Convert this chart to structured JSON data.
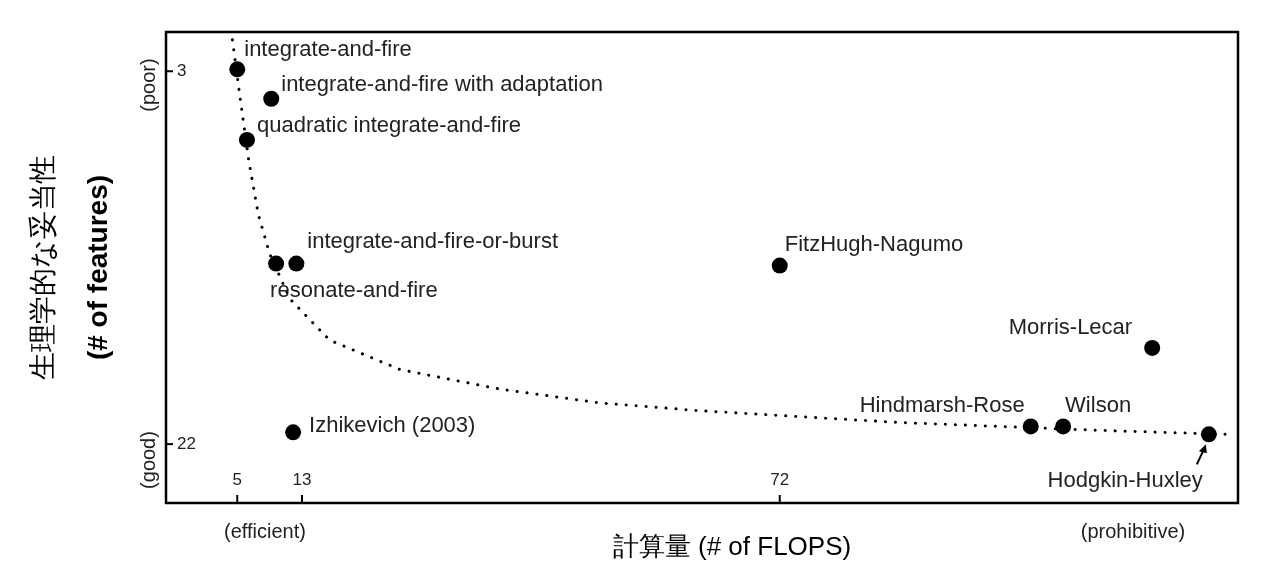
{
  "chart_data": {
    "type": "scatter",
    "xlabel": "計算量 (# of FLOPS)",
    "ylabel": "生理学的な妥当性\n(# of features)",
    "xlim": [
      -3.8,
      128.6
    ],
    "xticks": [
      5,
      13,
      72
    ],
    "ylim": [
      25.0,
      1.0
    ],
    "yticks": [
      3,
      22
    ],
    "grid": false,
    "series": [
      {
        "type": "line",
        "line_style": "dotted",
        "color": "#000000",
        "x": [
          4.4,
          5.4,
          6.4,
          7.6,
          9.0,
          11.5,
          16.4,
          25.1,
          37.5,
          49.8,
          62.2,
          74.5,
          86.9,
          99.2,
          111.5,
          127
        ],
        "values": [
          1.4,
          4.5,
          7.5,
          10.3,
          12.3,
          14.6,
          16.7,
          18.2,
          19.2,
          19.9,
          20.3,
          20.6,
          20.9,
          21.1,
          21.3,
          21.5
        ]
      },
      {
        "marker": "circle",
        "color": "#000000",
        "x": [
          5,
          9.2,
          6.2,
          12.3,
          9.8,
          72,
          118,
          103,
          107,
          11.9,
          125
        ],
        "values": [
          2.9,
          4.4,
          6.5,
          12.8,
          12.8,
          12.9,
          17.1,
          21.1,
          21.1,
          21.4,
          21.5
        ]
      }
    ],
    "annotations": [
      {
        "text": "integrate-and-fire",
        "x": 5,
        "y": 2.9
      },
      {
        "text": "integrate-and-fire with adaptation",
        "x": 9.2,
        "y": 4.4
      },
      {
        "text": "quadratic integrate-and-fire",
        "x": 6.2,
        "y": 6.5
      },
      {
        "text": "integrate-and-fire-or-burst",
        "x": 12.3,
        "y": 12.8
      },
      {
        "text": "resonate-and-fire",
        "x": 9.8,
        "y": 12.8
      },
      {
        "text": "FitzHugh-Nagumo",
        "x": 72,
        "y": 12.9
      },
      {
        "text": "Morris-Lecar",
        "x": 118,
        "y": 17.1
      },
      {
        "text": "Hindmarsh-Rose",
        "x": 103,
        "y": 21.1
      },
      {
        "text": "Wilson",
        "x": 107,
        "y": 21.1
      },
      {
        "text": "Izhikevich (2003)",
        "x": 11.9,
        "y": 21.4
      },
      {
        "text": "Hodgkin-Huxley",
        "x": 125,
        "y": 21.5
      },
      "(poor)",
      "(good)",
      "(efficient)",
      "(prohibitive)"
    ]
  }
}
